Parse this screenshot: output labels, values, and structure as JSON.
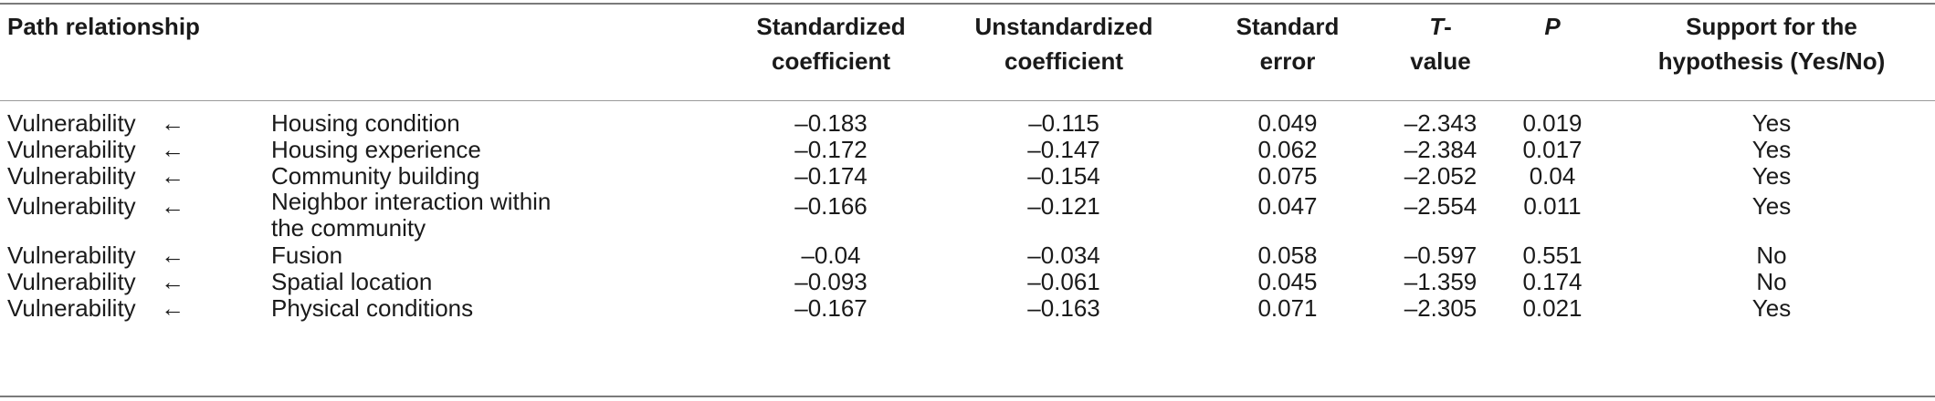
{
  "table": {
    "headers": {
      "path_relationship": "Path relationship",
      "standardized_line1": "Standardized",
      "standardized_line2": "coefficient",
      "unstandardized_line1": "Unstandardized",
      "unstandardized_line2": "coefficient",
      "se_line1": "Standard",
      "se_line2": "error",
      "t_line1": "T",
      "t_line1_suffix": "-",
      "t_line2": "value",
      "p": "P",
      "support_line1": "Support for the",
      "support_line2": "hypothesis (Yes/No)"
    },
    "arrow": "←",
    "rows": [
      {
        "dep": "Vulnerability",
        "ind": "Housing condition",
        "std": "–0.183",
        "uns": "–0.115",
        "se": "0.049",
        "t": "–2.343",
        "p": "0.019",
        "support": "Yes"
      },
      {
        "dep": "Vulnerability",
        "ind": "Housing experience",
        "std": "–0.172",
        "uns": "–0.147",
        "se": "0.062",
        "t": "–2.384",
        "p": "0.017",
        "support": "Yes"
      },
      {
        "dep": "Vulnerability",
        "ind": "Community building",
        "std": "–0.174",
        "uns": "–0.154",
        "se": "0.075",
        "t": "–2.052",
        "p": "0.04",
        "support": "Yes"
      },
      {
        "dep": "Vulnerability",
        "ind": "Neighbor interaction within the community",
        "std": "–0.166",
        "uns": "–0.121",
        "se": "0.047",
        "t": "–2.554",
        "p": "0.011",
        "support": "Yes"
      },
      {
        "dep": "Vulnerability",
        "ind": "Fusion",
        "std": "–0.04",
        "uns": "–0.034",
        "se": "0.058",
        "t": "–0.597",
        "p": "0.551",
        "support": "No"
      },
      {
        "dep": "Vulnerability",
        "ind": "Spatial location",
        "std": "–0.093",
        "uns": "–0.061",
        "se": "0.045",
        "t": "–1.359",
        "p": "0.174",
        "support": "No"
      },
      {
        "dep": "Vulnerability",
        "ind": "Physical conditions",
        "std": "–0.167",
        "uns": "–0.163",
        "se": "0.071",
        "t": "–2.305",
        "p": "0.021",
        "support": "Yes"
      }
    ]
  }
}
